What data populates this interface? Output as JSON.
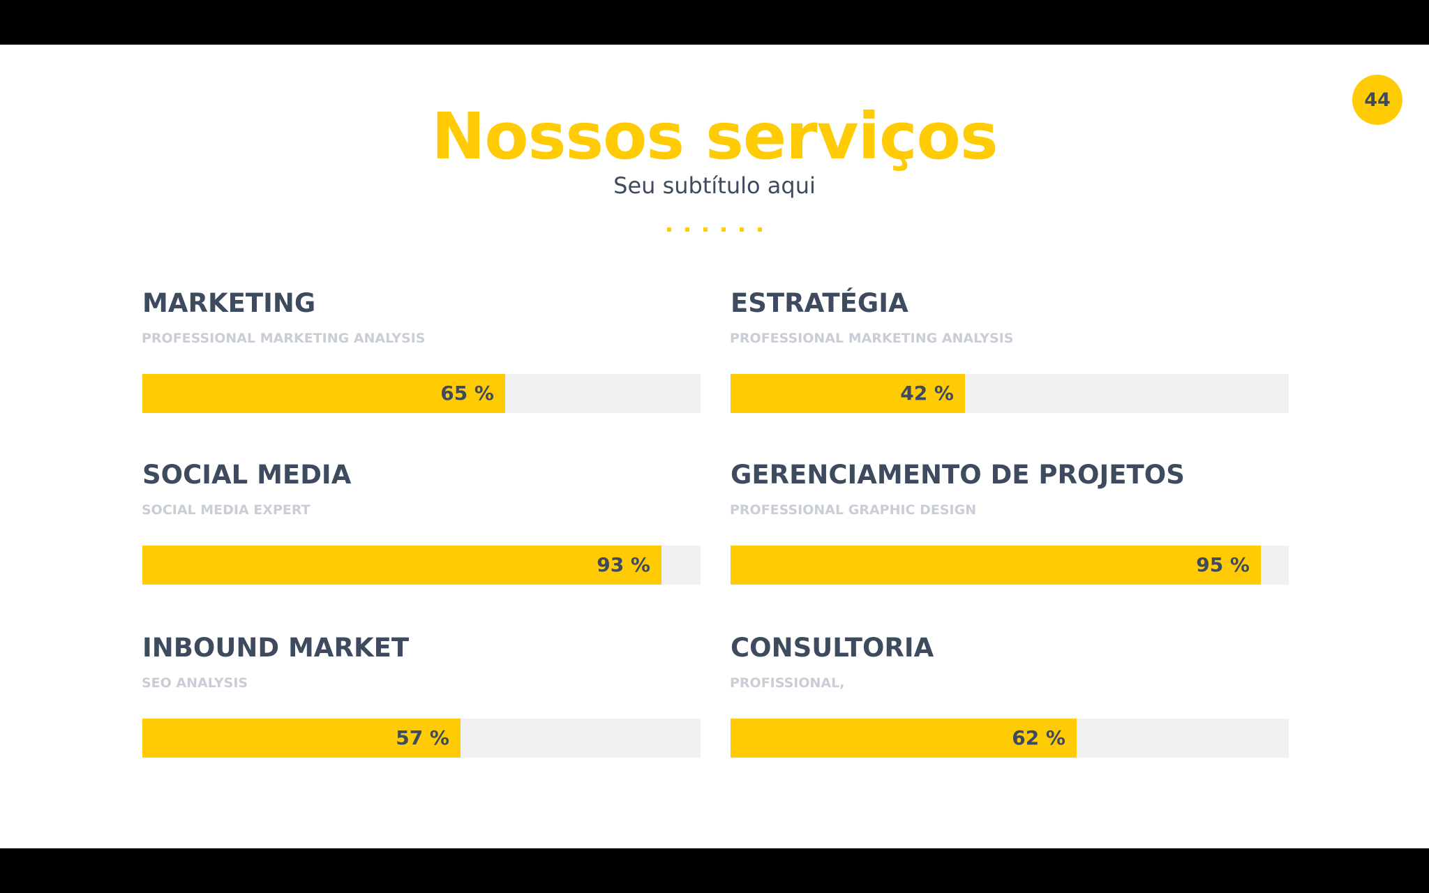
{
  "slide": {
    "page_number": "44",
    "title": "Nossos serviços",
    "subtitle": "Seu subtítulo aqui",
    "dot_count": 6,
    "accent_color": "#ffcb05",
    "text_color": "#3e4a5e",
    "muted_text_color": "#c9cdd6",
    "track_color": "#f1f1f1"
  },
  "services": [
    {
      "name": "MARKETING",
      "description": "PROFESSIONAL MARKETING ANALYSIS",
      "percent": 65,
      "percent_label": "65 %"
    },
    {
      "name": "ESTRATÉGIA",
      "description": "PROFESSIONAL MARKETING ANALYSIS",
      "percent": 42,
      "percent_label": "42 %"
    },
    {
      "name": "SOCIAL MEDIA",
      "description": "SOCIAL MEDIA EXPERT",
      "percent": 93,
      "percent_label": "93 %"
    },
    {
      "name": "GERENCIAMENTO DE PROJETOS",
      "description": "PROFESSIONAL GRAPHIC DESIGN",
      "percent": 95,
      "percent_label": "95 %"
    },
    {
      "name": "INBOUND MARKET",
      "description": "SEO ANALYSIS",
      "percent": 57,
      "percent_label": "57 %"
    },
    {
      "name": "CONSULTORIA",
      "description": "PROFISSIONAL,",
      "percent": 62,
      "percent_label": "62 %"
    }
  ]
}
